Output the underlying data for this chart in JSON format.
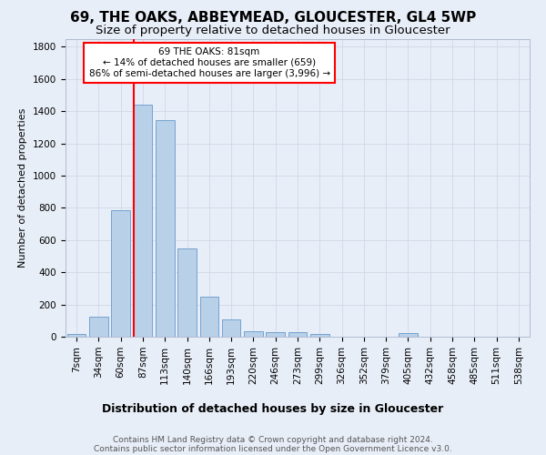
{
  "title1": "69, THE OAKS, ABBEYMEAD, GLOUCESTER, GL4 5WP",
  "title2": "Size of property relative to detached houses in Gloucester",
  "xlabel": "Distribution of detached houses by size in Gloucester",
  "ylabel": "Number of detached properties",
  "bar_labels": [
    "7sqm",
    "34sqm",
    "60sqm",
    "87sqm",
    "113sqm",
    "140sqm",
    "166sqm",
    "193sqm",
    "220sqm",
    "246sqm",
    "273sqm",
    "299sqm",
    "326sqm",
    "352sqm",
    "379sqm",
    "405sqm",
    "432sqm",
    "458sqm",
    "485sqm",
    "511sqm",
    "538sqm"
  ],
  "bar_values": [
    15,
    125,
    785,
    1440,
    1345,
    550,
    250,
    110,
    35,
    28,
    28,
    18,
    0,
    0,
    0,
    20,
    0,
    0,
    0,
    0,
    0
  ],
  "bar_color": "#b8d0e8",
  "bar_edge_color": "#6699cc",
  "grid_color": "#d0d8e8",
  "background_color": "#e8eef8",
  "vline_color": "red",
  "annotation_text": "69 THE OAKS: 81sqm\n← 14% of detached houses are smaller (659)\n86% of semi-detached houses are larger (3,996) →",
  "annotation_box_color": "white",
  "annotation_box_edge": "red",
  "footer1": "Contains HM Land Registry data © Crown copyright and database right 2024.",
  "footer2": "Contains public sector information licensed under the Open Government Licence v3.0.",
  "ylim": [
    0,
    1850
  ],
  "title1_fontsize": 11,
  "title2_fontsize": 9.5,
  "xlabel_fontsize": 9,
  "ylabel_fontsize": 8,
  "tick_fontsize": 7.5,
  "footer_fontsize": 6.5,
  "annot_fontsize": 7.5
}
